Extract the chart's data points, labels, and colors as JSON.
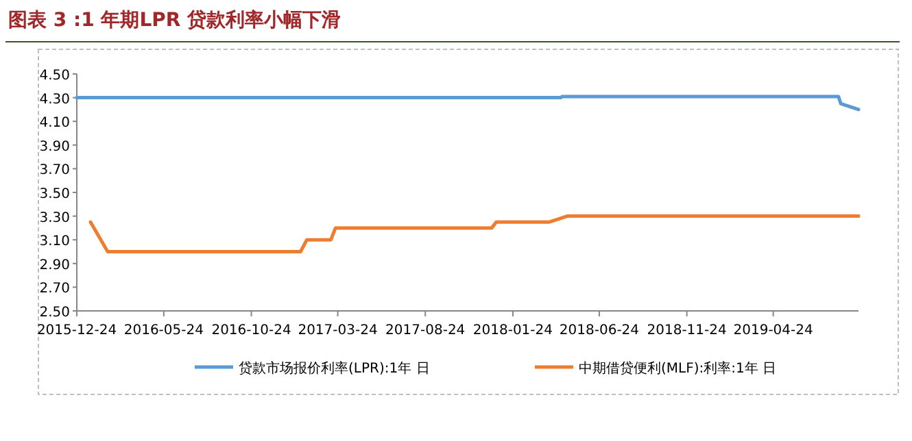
{
  "chart_data": {
    "type": "line",
    "title": "图表 3 :1 年期LPR 贷款利率小幅下滑",
    "xlim": [
      "2015-12-24",
      "2019-09-20"
    ],
    "xticks": [
      "2015-12-24",
      "2016-05-24",
      "2016-10-24",
      "2017-03-24",
      "2017-08-24",
      "2018-01-24",
      "2018-06-24",
      "2018-11-24",
      "2019-04-24"
    ],
    "ylim": [
      2.5,
      4.5
    ],
    "yticks": [
      {
        "value": 2.5,
        "label": "2.50"
      },
      {
        "value": 2.7,
        "label": "2.70"
      },
      {
        "value": 2.9,
        "label": "2.90"
      },
      {
        "value": 3.1,
        "label": "3.10"
      },
      {
        "value": 3.3,
        "label": "3.30"
      },
      {
        "value": 3.5,
        "label": "3.50"
      },
      {
        "value": 3.7,
        "label": "3.70"
      },
      {
        "value": 3.9,
        "label": "3.90"
      },
      {
        "value": 4.1,
        "label": "4.10"
      },
      {
        "value": 4.3,
        "label": "4.30"
      },
      {
        "value": 4.5,
        "label": "4.50"
      }
    ],
    "grid": false,
    "legend": "bottom",
    "marker": "none",
    "line_style": "solid",
    "series": [
      {
        "name": "贷款市场报价利率(LPR):1年 日",
        "color": "#5b9bd5",
        "x": [
          "2015-12-24",
          "2018-04-18",
          "2018-04-20",
          "2019-08-16",
          "2019-08-20",
          "2019-09-20"
        ],
        "values": [
          4.3,
          4.3,
          4.31,
          4.31,
          4.25,
          4.2
        ]
      },
      {
        "name": "中期借贷便利(MLF):利率:1年 日",
        "color": "#ed7d31",
        "x": [
          "2016-01-17",
          "2016-02-16",
          "2017-01-18",
          "2017-01-29",
          "2017-03-12",
          "2017-03-20",
          "2017-12-18",
          "2017-12-26",
          "2018-03-28",
          "2018-04-29",
          "2019-09-20"
        ],
        "values": [
          3.25,
          3.0,
          3.0,
          3.1,
          3.1,
          3.2,
          3.2,
          3.25,
          3.25,
          3.3,
          3.3
        ]
      }
    ]
  }
}
